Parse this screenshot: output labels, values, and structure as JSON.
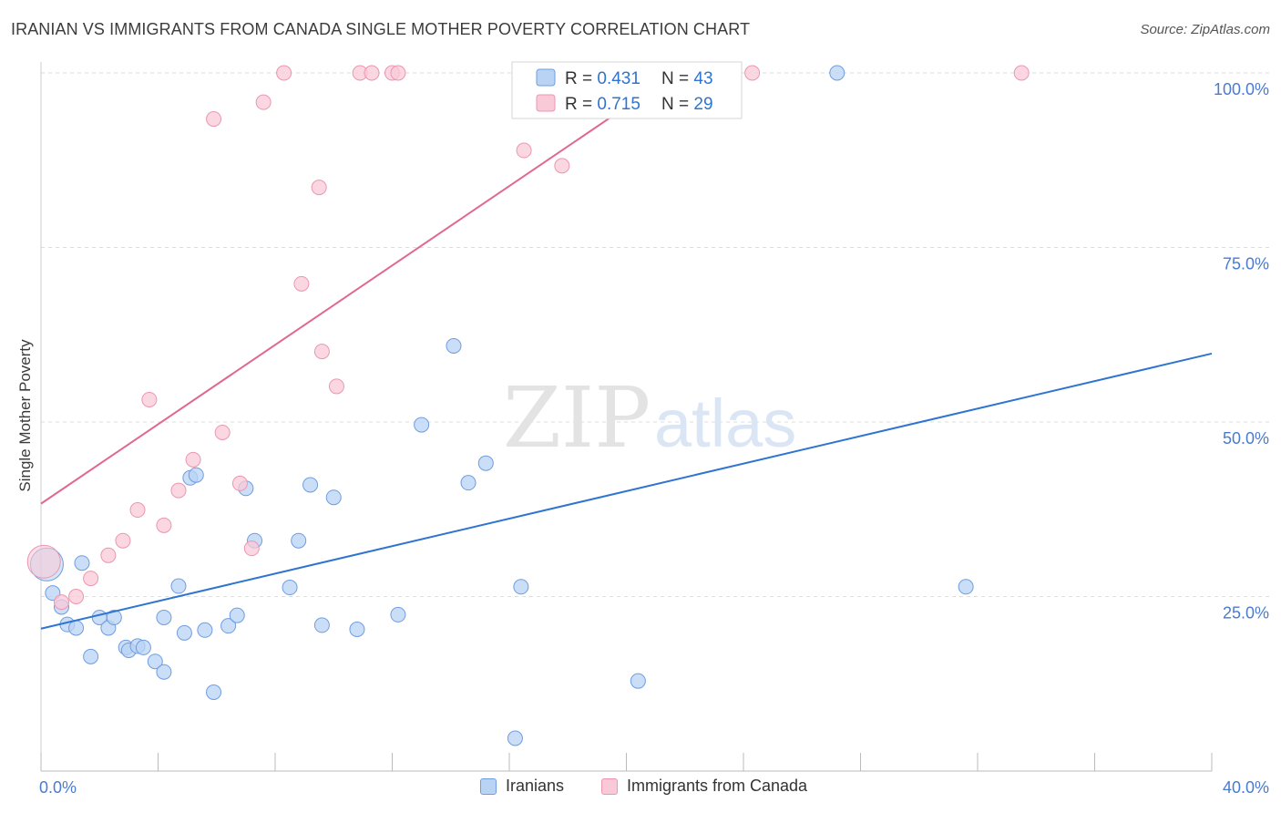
{
  "title": "IRANIAN VS IMMIGRANTS FROM CANADA SINGLE MOTHER POVERTY CORRELATION CHART",
  "source": "Source: ZipAtlas.com",
  "watermark": {
    "zip": "ZIP",
    "atlas": "atlas"
  },
  "colors": {
    "blue": "#2e74d0",
    "blue_fill": "#b9d3f5",
    "blue_stroke": "#6f9de0",
    "pink": "#e0688f",
    "pink_fill": "#f9c9d7",
    "pink_stroke": "#ec96b1",
    "grid": "#dddddd",
    "tick_label": "#4a7bd0"
  },
  "legend": {
    "rows": [
      {
        "r_label": "R = ",
        "r_value": "0.431",
        "n_label": "N = ",
        "n_value": "43",
        "color": "blue"
      },
      {
        "r_label": "R = ",
        "r_value": "0.715",
        "n_label": "N = ",
        "n_value": "29",
        "color": "pink"
      }
    ]
  },
  "bottom_legend": [
    "Iranians",
    "Immigrants from Canada"
  ],
  "chart_data": {
    "type": "scatter",
    "title": "IRANIAN VS IMMIGRANTS FROM CANADA SINGLE MOTHER POVERTY CORRELATION CHART",
    "xlabel": "",
    "ylabel": "Single Mother Poverty",
    "xlim": [
      0,
      40
    ],
    "ylim": [
      0,
      100
    ],
    "x_ticks": [
      "0.0%",
      "40.0%"
    ],
    "y_ticks": [
      {
        "value": 25,
        "label": "25.0%"
      },
      {
        "value": 50,
        "label": "50.0%"
      },
      {
        "value": 75,
        "label": "75.0%"
      },
      {
        "value": 100,
        "label": "100.0%"
      }
    ],
    "grid": "horizontal dashed",
    "legend_position": "top-center",
    "series": [
      {
        "name": "Iranians",
        "color": "blue",
        "R": 0.431,
        "N": 43,
        "trend": {
          "x": [
            0,
            40
          ],
          "y": [
            20.4,
            59.8
          ]
        },
        "points": [
          {
            "x": 0.2,
            "y": 29.6,
            "big": true
          },
          {
            "x": 0.4,
            "y": 25.5
          },
          {
            "x": 0.7,
            "y": 23.5
          },
          {
            "x": 0.9,
            "y": 21.0
          },
          {
            "x": 1.2,
            "y": 20.5
          },
          {
            "x": 1.4,
            "y": 29.8
          },
          {
            "x": 1.7,
            "y": 16.4
          },
          {
            "x": 2.0,
            "y": 22.0
          },
          {
            "x": 2.3,
            "y": 20.5
          },
          {
            "x": 2.5,
            "y": 22.0
          },
          {
            "x": 2.9,
            "y": 17.7
          },
          {
            "x": 3.0,
            "y": 17.3
          },
          {
            "x": 3.3,
            "y": 17.9
          },
          {
            "x": 3.5,
            "y": 17.7
          },
          {
            "x": 3.9,
            "y": 15.7
          },
          {
            "x": 4.2,
            "y": 22.0
          },
          {
            "x": 4.2,
            "y": 14.2
          },
          {
            "x": 4.7,
            "y": 26.5
          },
          {
            "x": 4.9,
            "y": 19.8
          },
          {
            "x": 5.1,
            "y": 42.0
          },
          {
            "x": 5.3,
            "y": 42.4
          },
          {
            "x": 5.6,
            "y": 20.2
          },
          {
            "x": 5.9,
            "y": 11.3
          },
          {
            "x": 6.4,
            "y": 20.8
          },
          {
            "x": 6.7,
            "y": 22.3
          },
          {
            "x": 7.0,
            "y": 40.5
          },
          {
            "x": 7.3,
            "y": 33.0
          },
          {
            "x": 8.5,
            "y": 26.3
          },
          {
            "x": 8.8,
            "y": 33.0
          },
          {
            "x": 9.2,
            "y": 41.0
          },
          {
            "x": 9.6,
            "y": 20.9
          },
          {
            "x": 10.0,
            "y": 39.2
          },
          {
            "x": 10.8,
            "y": 20.3
          },
          {
            "x": 12.2,
            "y": 22.4
          },
          {
            "x": 13.0,
            "y": 49.6
          },
          {
            "x": 14.1,
            "y": 60.9
          },
          {
            "x": 14.6,
            "y": 41.3
          },
          {
            "x": 15.2,
            "y": 44.1
          },
          {
            "x": 16.2,
            "y": 4.7
          },
          {
            "x": 16.4,
            "y": 26.4
          },
          {
            "x": 20.4,
            "y": 12.9
          },
          {
            "x": 27.2,
            "y": 100.0
          },
          {
            "x": 31.6,
            "y": 26.4
          }
        ]
      },
      {
        "name": "Immigrants from Canada",
        "color": "pink",
        "R": 0.715,
        "N": 29,
        "trend": {
          "x": [
            0,
            21.7
          ],
          "y": [
            38.3,
            100.0
          ]
        },
        "points": [
          {
            "x": 0.1,
            "y": 30.0,
            "big": true
          },
          {
            "x": 0.7,
            "y": 24.2
          },
          {
            "x": 1.2,
            "y": 25.0
          },
          {
            "x": 1.7,
            "y": 27.6
          },
          {
            "x": 2.3,
            "y": 30.9
          },
          {
            "x": 2.8,
            "y": 33.0
          },
          {
            "x": 3.3,
            "y": 37.4
          },
          {
            "x": 3.7,
            "y": 53.2
          },
          {
            "x": 4.2,
            "y": 35.2
          },
          {
            "x": 4.7,
            "y": 40.2
          },
          {
            "x": 5.2,
            "y": 44.6
          },
          {
            "x": 5.9,
            "y": 93.4
          },
          {
            "x": 6.2,
            "y": 48.5
          },
          {
            "x": 6.8,
            "y": 41.2
          },
          {
            "x": 7.2,
            "y": 31.9
          },
          {
            "x": 7.6,
            "y": 95.8
          },
          {
            "x": 8.3,
            "y": 100.0
          },
          {
            "x": 8.9,
            "y": 69.8
          },
          {
            "x": 9.5,
            "y": 83.6
          },
          {
            "x": 9.6,
            "y": 60.1
          },
          {
            "x": 10.1,
            "y": 55.1
          },
          {
            "x": 10.9,
            "y": 100.0
          },
          {
            "x": 11.3,
            "y": 100.0
          },
          {
            "x": 12.0,
            "y": 100.0
          },
          {
            "x": 12.2,
            "y": 100.0
          },
          {
            "x": 16.5,
            "y": 88.9
          },
          {
            "x": 17.8,
            "y": 86.7
          },
          {
            "x": 24.3,
            "y": 100.0
          },
          {
            "x": 33.5,
            "y": 100.0
          }
        ]
      }
    ]
  }
}
